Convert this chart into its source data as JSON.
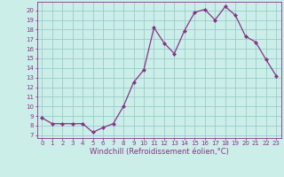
{
  "x": [
    0,
    1,
    2,
    3,
    4,
    5,
    6,
    7,
    8,
    9,
    10,
    11,
    12,
    13,
    14,
    15,
    16,
    17,
    18,
    19,
    20,
    21,
    22,
    23
  ],
  "y": [
    8.8,
    8.2,
    8.2,
    8.2,
    8.2,
    7.3,
    7.8,
    8.2,
    10.0,
    12.5,
    13.8,
    18.2,
    16.6,
    15.5,
    17.9,
    19.8,
    20.1,
    19.0,
    20.4,
    19.5,
    17.3,
    16.7,
    14.9,
    13.2
  ],
  "line_color": "#883388",
  "marker": "D",
  "marker_size": 2.0,
  "bg_color": "#cceee8",
  "grid_color": "#99cccc",
  "xlabel": "Windchill (Refroidissement éolien,°C)",
  "ylabel_ticks": [
    7,
    8,
    9,
    10,
    11,
    12,
    13,
    14,
    15,
    16,
    17,
    18,
    19,
    20
  ],
  "ylim": [
    6.7,
    20.9
  ],
  "xlim": [
    -0.5,
    23.5
  ],
  "tick_fontsize": 5.0,
  "xlabel_fontsize": 6.0
}
